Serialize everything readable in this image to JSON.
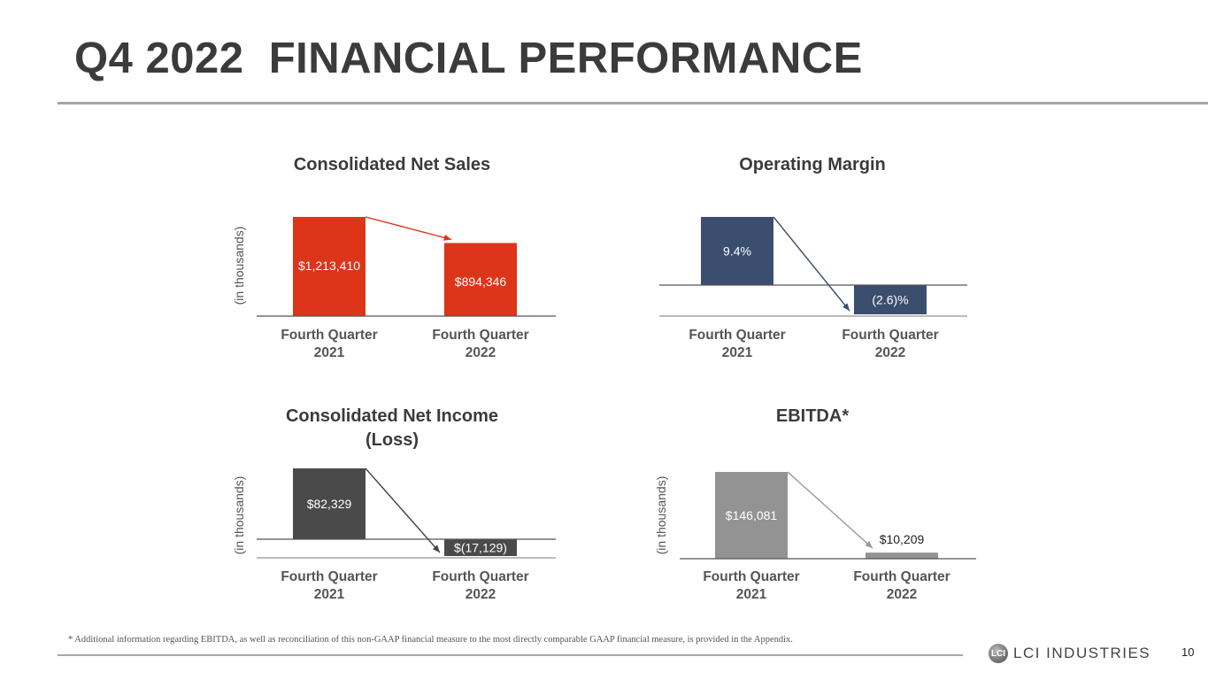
{
  "header": {
    "title": "Q4 2022  FINANCIAL PERFORMANCE"
  },
  "footer": {
    "footnote": "* Additional information regarding EBITDA, as well as reconciliation of this non-GAAP financial measure to the most directly comparable GAAP financial measure, is provided in the Appendix.",
    "logo_text": "LCI INDUSTRIES",
    "page_number": "10"
  },
  "chart_data": [
    {
      "type": "bar",
      "title": "Consolidated Net Sales",
      "ylabel": "(in thousands)",
      "categories": [
        "Fourth Quarter 2021",
        "Fourth Quarter 2022"
      ],
      "values": [
        1213410,
        894346
      ],
      "labels": [
        "$1,213,410",
        "$894,346"
      ],
      "color": "#dc3519"
    },
    {
      "type": "bar",
      "title": "Operating Margin",
      "ylabel": "",
      "categories": [
        "Fourth Quarter 2021",
        "Fourth Quarter 2022"
      ],
      "values": [
        9.4,
        -2.6
      ],
      "labels": [
        "9.4%",
        "(2.6)%"
      ],
      "color": "#3b4e6e"
    },
    {
      "type": "bar",
      "title": "Consolidated Net Income (Loss)",
      "ylabel": "(in thousands)",
      "categories": [
        "Fourth Quarter 2021",
        "Fourth Quarter 2022"
      ],
      "values": [
        82329,
        -17129
      ],
      "labels": [
        "$82,329",
        "$(17,129)"
      ],
      "color": "#4a4a4a"
    },
    {
      "type": "bar",
      "title": "EBITDA*",
      "ylabel": "(in thousands)",
      "categories": [
        "Fourth Quarter 2021",
        "Fourth Quarter 2022"
      ],
      "values": [
        146081,
        10209
      ],
      "labels": [
        "$146,081",
        "$10,209"
      ],
      "color": "#939393"
    }
  ]
}
